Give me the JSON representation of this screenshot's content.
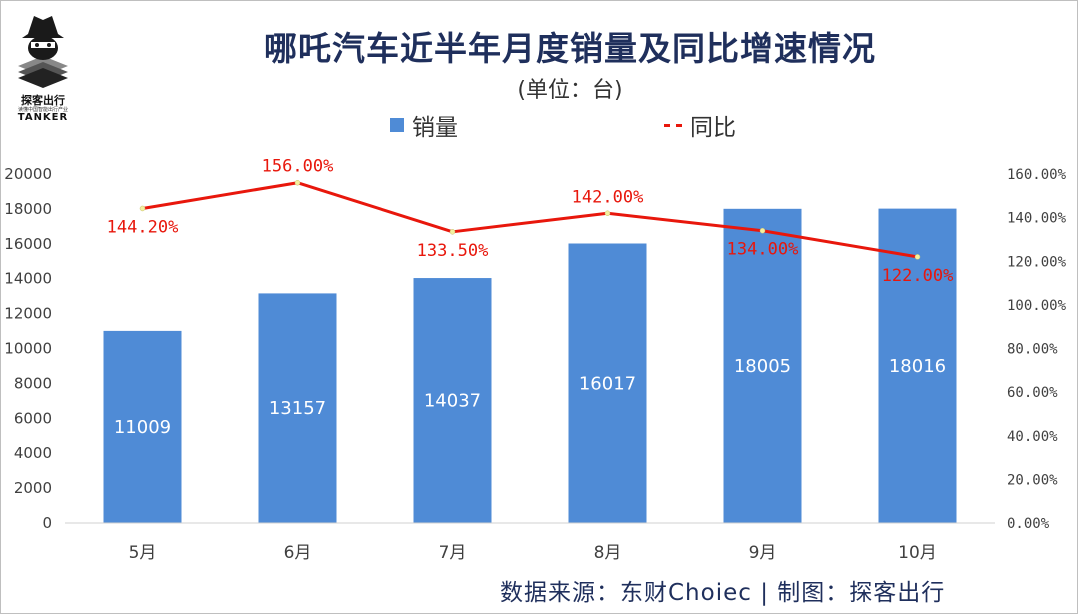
{
  "logo": {
    "name": "探客出行",
    "tagline": "读懂中国智能出行产业",
    "en": "TANKER"
  },
  "header": {
    "title": "哪吒汽车近半年月度销量及同比增速情况",
    "unit": "(单位：台)"
  },
  "legend": {
    "bar_label": "销量",
    "line_label": "同比"
  },
  "footer": {
    "source": "数据来源：东财Choiec  |  制图：探客出行"
  },
  "colors": {
    "bar": "#4f8bd6",
    "line": "#e8170c",
    "title": "#1f2f5c"
  },
  "chart_data": {
    "type": "bar+line",
    "title": "哪吒汽车近半年月度销量及同比增速情况",
    "subtitle": "(单位：台)",
    "categories": [
      "5月",
      "6月",
      "7月",
      "8月",
      "9月",
      "10月"
    ],
    "series": [
      {
        "name": "销量",
        "type": "bar",
        "axis": "left",
        "values": [
          11009,
          13157,
          14037,
          16017,
          18005,
          18016
        ],
        "labels": [
          "11009",
          "13157",
          "14037",
          "16017",
          "18005",
          "18016"
        ]
      },
      {
        "name": "同比",
        "type": "line",
        "axis": "right",
        "values": [
          144.2,
          156.0,
          133.5,
          142.0,
          134.0,
          122.0
        ],
        "labels": [
          "144.20%",
          "156.00%",
          "133.50%",
          "142.00%",
          "134.00%",
          "122.00%"
        ]
      }
    ],
    "y_left": {
      "min": 0,
      "max": 20000,
      "ticks": [
        "0",
        "2000",
        "4000",
        "6000",
        "8000",
        "10000",
        "12000",
        "14000",
        "16000",
        "18000",
        "20000"
      ]
    },
    "y_right": {
      "min": 0,
      "max": 160,
      "ticks": [
        "0.00%",
        "20.00%",
        "40.00%",
        "60.00%",
        "80.00%",
        "100.00%",
        "120.00%",
        "140.00%",
        "160.00%"
      ]
    },
    "grid": false,
    "legend_position": "top"
  }
}
